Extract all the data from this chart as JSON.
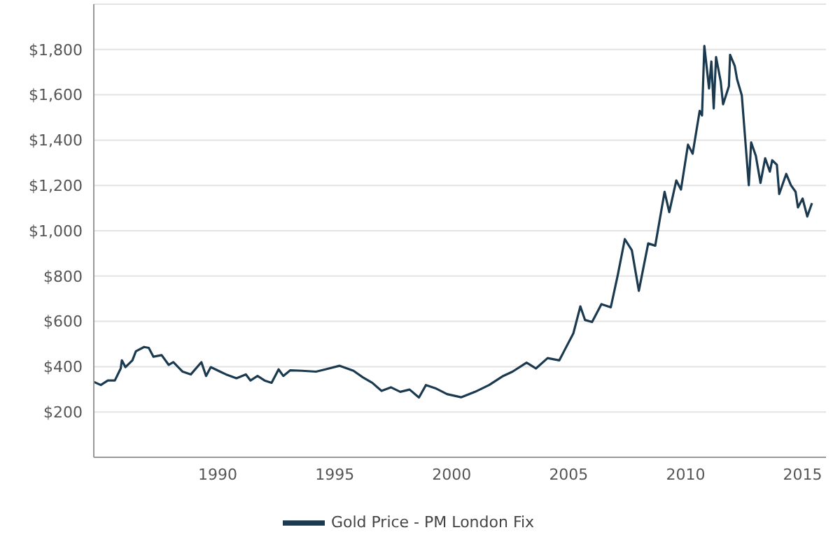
{
  "chart_data": {
    "type": "line",
    "legend": "bottom",
    "grid": "y",
    "marker": "none",
    "line_style": "solid",
    "xlim": [
      1984.7,
      2016
    ],
    "xticks": [
      1990,
      1995,
      2000,
      2005,
      2010,
      2015
    ],
    "ylim": [
      0,
      2000
    ],
    "yticks": [
      {
        "value": 200,
        "label": "$200"
      },
      {
        "value": 400,
        "label": "$400"
      },
      {
        "value": 600,
        "label": "$600"
      },
      {
        "value": 800,
        "label": "$800"
      },
      {
        "value": 1000,
        "label": "$1,000"
      },
      {
        "value": 1200,
        "label": "$1,200"
      },
      {
        "value": 1400,
        "label": "$1,400"
      },
      {
        "value": 1600,
        "label": "$1,600"
      },
      {
        "value": 1800,
        "label": "$1,800"
      }
    ],
    "x": [
      1984.7,
      1985.0,
      1985.3,
      1985.6,
      1985.85,
      1985.9,
      1986.05,
      1986.35,
      1986.5,
      1986.85,
      1987.05,
      1987.25,
      1987.6,
      1987.9,
      1988.1,
      1988.5,
      1988.85,
      1989.2,
      1989.3,
      1989.5,
      1989.7,
      1990.1,
      1990.35,
      1990.8,
      1991.2,
      1991.4,
      1991.7,
      1992.0,
      1992.3,
      1992.6,
      1992.8,
      1993.1,
      1993.6,
      1994.2,
      1994.6,
      1995.2,
      1995.8,
      1996.2,
      1996.6,
      1997.0,
      1997.4,
      1997.8,
      1998.2,
      1998.6,
      1998.9,
      1999.3,
      1999.8,
      2000.4,
      2001.0,
      2001.6,
      2002.2,
      2002.6,
      2003.2,
      2003.6,
      2004.1,
      2004.6,
      2004.8,
      2005.2,
      2005.5,
      2005.7,
      2006.0,
      2006.4,
      2006.8,
      2007.1,
      2007.4,
      2007.7,
      2008.0,
      2008.4,
      2008.7,
      2009.1,
      2009.3,
      2009.6,
      2009.8,
      2010.1,
      2010.3,
      2010.6,
      2010.7,
      2010.8,
      2011.0,
      2011.1,
      2011.2,
      2011.3,
      2011.5,
      2011.6,
      2011.85,
      2011.9,
      2012.1,
      2012.2,
      2012.4,
      2012.7,
      2012.8,
      2013.0,
      2013.2,
      2013.4,
      2013.6,
      2013.7,
      2013.9,
      2014.0,
      2014.3,
      2014.5,
      2014.7,
      2014.8,
      2015.0,
      2015.2,
      2015.4
    ],
    "series": [
      {
        "name": "Gold Price - PM London Fix",
        "color": "#1b3a4f",
        "values": [
          333,
          319,
          339,
          339,
          392,
          428,
          398,
          428,
          468,
          487,
          483,
          444,
          451,
          408,
          420,
          378,
          366,
          408,
          420,
          359,
          398,
          378,
          366,
          349,
          366,
          339,
          359,
          339,
          329,
          388,
          359,
          384,
          382,
          378,
          388,
          404,
          382,
          353,
          329,
          293,
          309,
          289,
          299,
          264,
          319,
          305,
          279,
          265,
          289,
          319,
          359,
          378,
          418,
          392,
          438,
          428,
          468,
          547,
          666,
          606,
          597,
          676,
          662,
          805,
          963,
          914,
          735,
          944,
          934,
          1172,
          1082,
          1222,
          1182,
          1380,
          1340,
          1529,
          1509,
          1816,
          1628,
          1747,
          1540,
          1767,
          1658,
          1558,
          1638,
          1777,
          1727,
          1668,
          1598,
          1201,
          1390,
          1331,
          1211,
          1320,
          1261,
          1311,
          1291,
          1162,
          1251,
          1201,
          1172,
          1103,
          1142,
          1063,
          1122
        ]
      }
    ]
  }
}
